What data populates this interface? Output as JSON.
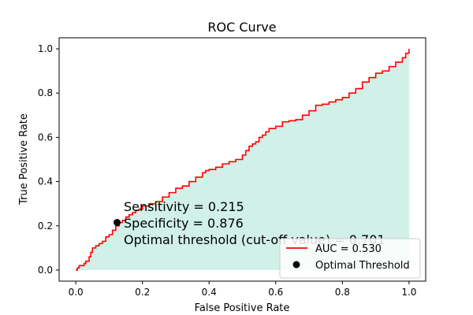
{
  "chart_data": {
    "type": "line",
    "title": "ROC Curve",
    "xlabel": "False Positive Rate",
    "ylabel": "True Positive Rate",
    "xlim": [
      -0.05,
      1.05
    ],
    "ylim": [
      -0.05,
      1.05
    ],
    "xticks": [
      0.0,
      0.2,
      0.4,
      0.6,
      0.8,
      1.0
    ],
    "yticks": [
      0.0,
      0.2,
      0.4,
      0.6,
      0.8,
      1.0
    ],
    "xtick_labels": [
      "0.0",
      "0.2",
      "0.4",
      "0.6",
      "0.8",
      "1.0"
    ],
    "ytick_labels": [
      "0.0",
      "0.2",
      "0.4",
      "0.6",
      "0.8",
      "1.0"
    ],
    "grid": false,
    "legend_position": "lower-right",
    "series": [
      {
        "name": "AUC = 0.530",
        "color": "#ff0000",
        "fill_color": "#d0f0e8",
        "x": [
          0.0,
          0.005,
          0.01,
          0.02,
          0.025,
          0.03,
          0.04,
          0.045,
          0.05,
          0.06,
          0.07,
          0.08,
          0.09,
          0.1,
          0.11,
          0.12,
          0.13,
          0.14,
          0.15,
          0.16,
          0.17,
          0.18,
          0.19,
          0.2,
          0.22,
          0.24,
          0.26,
          0.28,
          0.3,
          0.32,
          0.34,
          0.36,
          0.38,
          0.39,
          0.4,
          0.42,
          0.44,
          0.46,
          0.48,
          0.5,
          0.51,
          0.52,
          0.53,
          0.54,
          0.55,
          0.56,
          0.57,
          0.58,
          0.6,
          0.62,
          0.64,
          0.66,
          0.68,
          0.7,
          0.72,
          0.74,
          0.76,
          0.78,
          0.8,
          0.82,
          0.84,
          0.86,
          0.88,
          0.9,
          0.92,
          0.94,
          0.96,
          0.98,
          0.99,
          1.0
        ],
        "y": [
          0.0,
          0.01,
          0.02,
          0.02,
          0.03,
          0.04,
          0.06,
          0.08,
          0.1,
          0.11,
          0.12,
          0.13,
          0.15,
          0.16,
          0.18,
          0.2,
          0.215,
          0.225,
          0.24,
          0.25,
          0.26,
          0.27,
          0.275,
          0.29,
          0.3,
          0.31,
          0.33,
          0.35,
          0.37,
          0.38,
          0.4,
          0.42,
          0.44,
          0.45,
          0.455,
          0.465,
          0.48,
          0.49,
          0.5,
          0.52,
          0.54,
          0.56,
          0.57,
          0.58,
          0.6,
          0.61,
          0.625,
          0.64,
          0.65,
          0.67,
          0.675,
          0.68,
          0.7,
          0.72,
          0.745,
          0.75,
          0.76,
          0.77,
          0.78,
          0.8,
          0.82,
          0.85,
          0.87,
          0.89,
          0.9,
          0.92,
          0.94,
          0.96,
          0.98,
          1.0
        ]
      }
    ],
    "optimal_point": {
      "name": "Optimal Threshold",
      "x": 0.124,
      "y": 0.215,
      "color": "#000000"
    },
    "annotation": {
      "lines": [
        "Sensitivity = 0.215",
        "Specificity = 0.876",
        "Optimal threshold (cut-off value) = 0.701"
      ]
    },
    "legend": [
      {
        "label": "AUC = 0.530",
        "marker": "line",
        "color": "#ff0000"
      },
      {
        "label": "Optimal Threshold",
        "marker": "dot",
        "color": "#000000"
      }
    ]
  }
}
